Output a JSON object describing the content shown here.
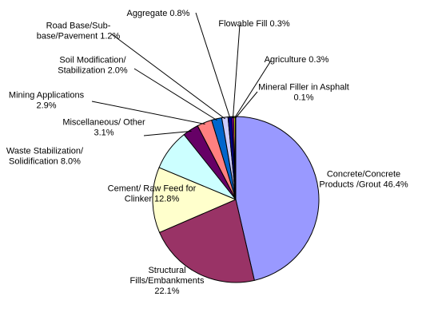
{
  "chart_data": {
    "type": "pie",
    "title": "",
    "start_angle_deg": 0,
    "direction": "clockwise",
    "slices": [
      {
        "name": "Concrete/Concrete Products /Grout",
        "value": 46.4,
        "label_lines": [
          "Concrete/Concrete",
          "Products /Grout 46.4%"
        ],
        "color": "#9999FF"
      },
      {
        "name": "Structural Fills/Embankments",
        "value": 22.1,
        "label_lines": [
          "Structural",
          "Fills/Embankments",
          "22.1%"
        ],
        "color": "#993366"
      },
      {
        "name": "Cement/ Raw Feed for Clinker",
        "value": 12.8,
        "label_lines": [
          "Cement/ Raw Feed for",
          "Clinker 12.8%"
        ],
        "color": "#FFFFCC"
      },
      {
        "name": "Waste Stabilization/ Solidification",
        "value": 8.0,
        "label_lines": [
          "Waste Stabilization/",
          "Solidification  8.0%"
        ],
        "color": "#CCFFFF"
      },
      {
        "name": "Miscellaneous/ Other",
        "value": 3.1,
        "label_lines": [
          "Miscellaneous/ Other",
          "3.1%"
        ],
        "color": "#660066"
      },
      {
        "name": "Mining Applications",
        "value": 2.9,
        "label_lines": [
          "Mining Applications",
          "2.9%"
        ],
        "color": "#FF8080"
      },
      {
        "name": "Soil Modification/ Stabilization",
        "value": 2.0,
        "label_lines": [
          "Soil Modification/",
          "Stabilization 2.0%"
        ],
        "color": "#0066CC"
      },
      {
        "name": "Road Base/Sub-base/Pavement",
        "value": 1.2,
        "label_lines": [
          "Road Base/Sub-",
          "base/Pavement 1.2%"
        ],
        "color": "#CCCCFF"
      },
      {
        "name": "Aggregate",
        "value": 0.8,
        "label_lines": [
          "Aggregate 0.8%"
        ],
        "color": "#000080"
      },
      {
        "name": "Flowable Fill",
        "value": 0.3,
        "label_lines": [
          "Flowable Fill 0.3%"
        ],
        "color": "#FF00FF"
      },
      {
        "name": "Agriculture",
        "value": 0.3,
        "label_lines": [
          "Agriculture  0.3%"
        ],
        "color": "#FFFF00"
      },
      {
        "name": "Mineral Filler in Asphalt",
        "value": 0.1,
        "label_lines": [
          "Mineral Filler in Asphalt",
          "0.1%"
        ],
        "color": "#00FFFF"
      }
    ]
  }
}
